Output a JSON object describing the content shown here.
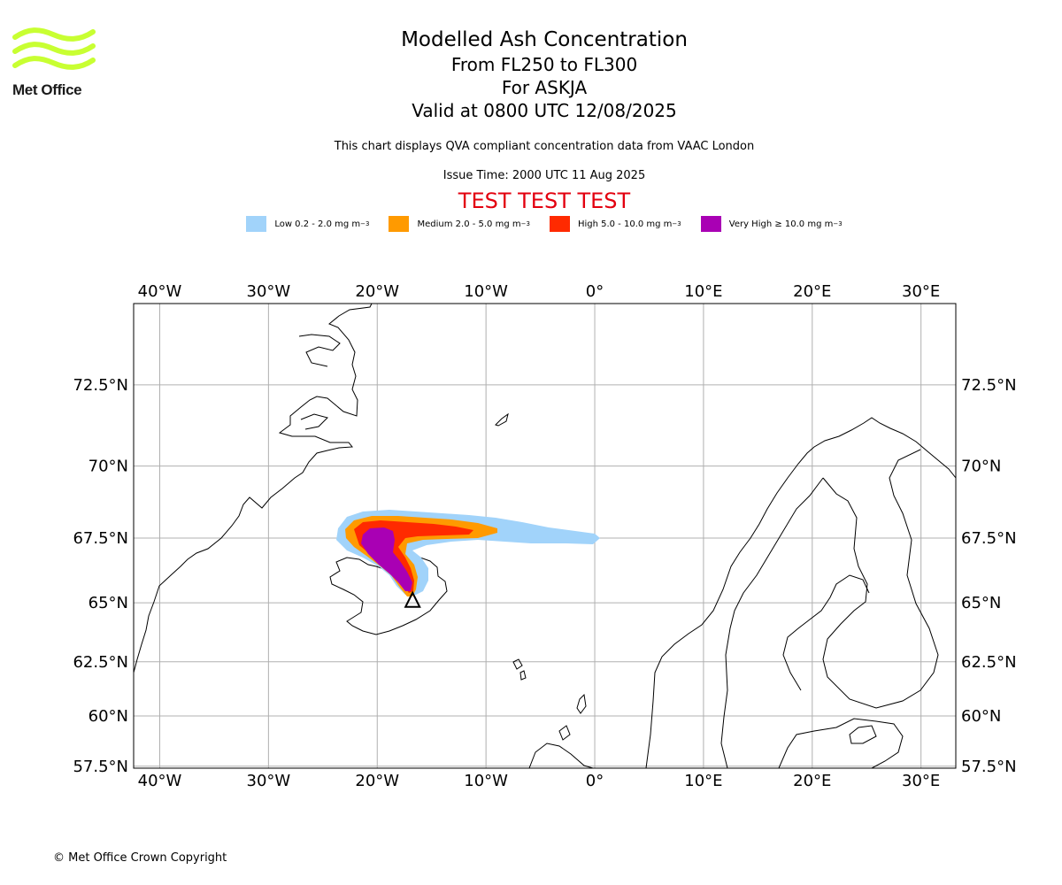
{
  "header": {
    "logo_text": "Met Office",
    "title": "Modelled Ash Concentration",
    "subtitle_levels": "From FL250 to FL300",
    "subtitle_volcano": "For ASKJA",
    "subtitle_valid": "Valid at 0800 UTC 12/08/2025",
    "description": "This chart displays QVA compliant concentration data from VAAC London",
    "issue_time": "Issue Time: 2000 UTC 11 Aug 2025",
    "test_banner": "TEST TEST TEST"
  },
  "legend": [
    {
      "label": "Low 0.2 - 2.0 mg m",
      "color": "#a1d3fa"
    },
    {
      "label": "Medium 2.0 - 5.0 mg m",
      "color": "#ff9a00"
    },
    {
      "label": "High 5.0 - 10.0 mg m",
      "color": "#ff2a00"
    },
    {
      "label": "Very High ≥ 10.0 mg m",
      "color": "#a900b4"
    }
  ],
  "legend_unit_exponent": "−3",
  "colors": {
    "test_banner": "#e3000f",
    "logo": "#c8ff32",
    "grid": "#b0b0b0",
    "coast": "#000000"
  },
  "map": {
    "lon_range": [
      -42.4,
      33.2
    ],
    "lat_range": [
      57.4,
      74.7
    ],
    "lon_ticks": [
      {
        "value": -40,
        "label": "40°W"
      },
      {
        "value": -30,
        "label": "30°W"
      },
      {
        "value": -20,
        "label": "20°W"
      },
      {
        "value": -10,
        "label": "10°W"
      },
      {
        "value": 0,
        "label": "0°"
      },
      {
        "value": 10,
        "label": "10°E"
      },
      {
        "value": 20,
        "label": "20°E"
      },
      {
        "value": 30,
        "label": "30°E"
      }
    ],
    "lat_ticks": [
      {
        "value": 72.5,
        "label": "72.5°N"
      },
      {
        "value": 70,
        "label": "70°N"
      },
      {
        "value": 67.5,
        "label": "67.5°N"
      },
      {
        "value": 65,
        "label": "65°N"
      },
      {
        "value": 62.5,
        "label": "62.5°N"
      },
      {
        "value": 60,
        "label": "60°N"
      },
      {
        "value": 57.5,
        "label": "57.5°N"
      }
    ],
    "volcano": {
      "lon": -16.75,
      "lat": 65.05
    }
  },
  "footer": {
    "copyright": "© Met Office Crown Copyright"
  }
}
